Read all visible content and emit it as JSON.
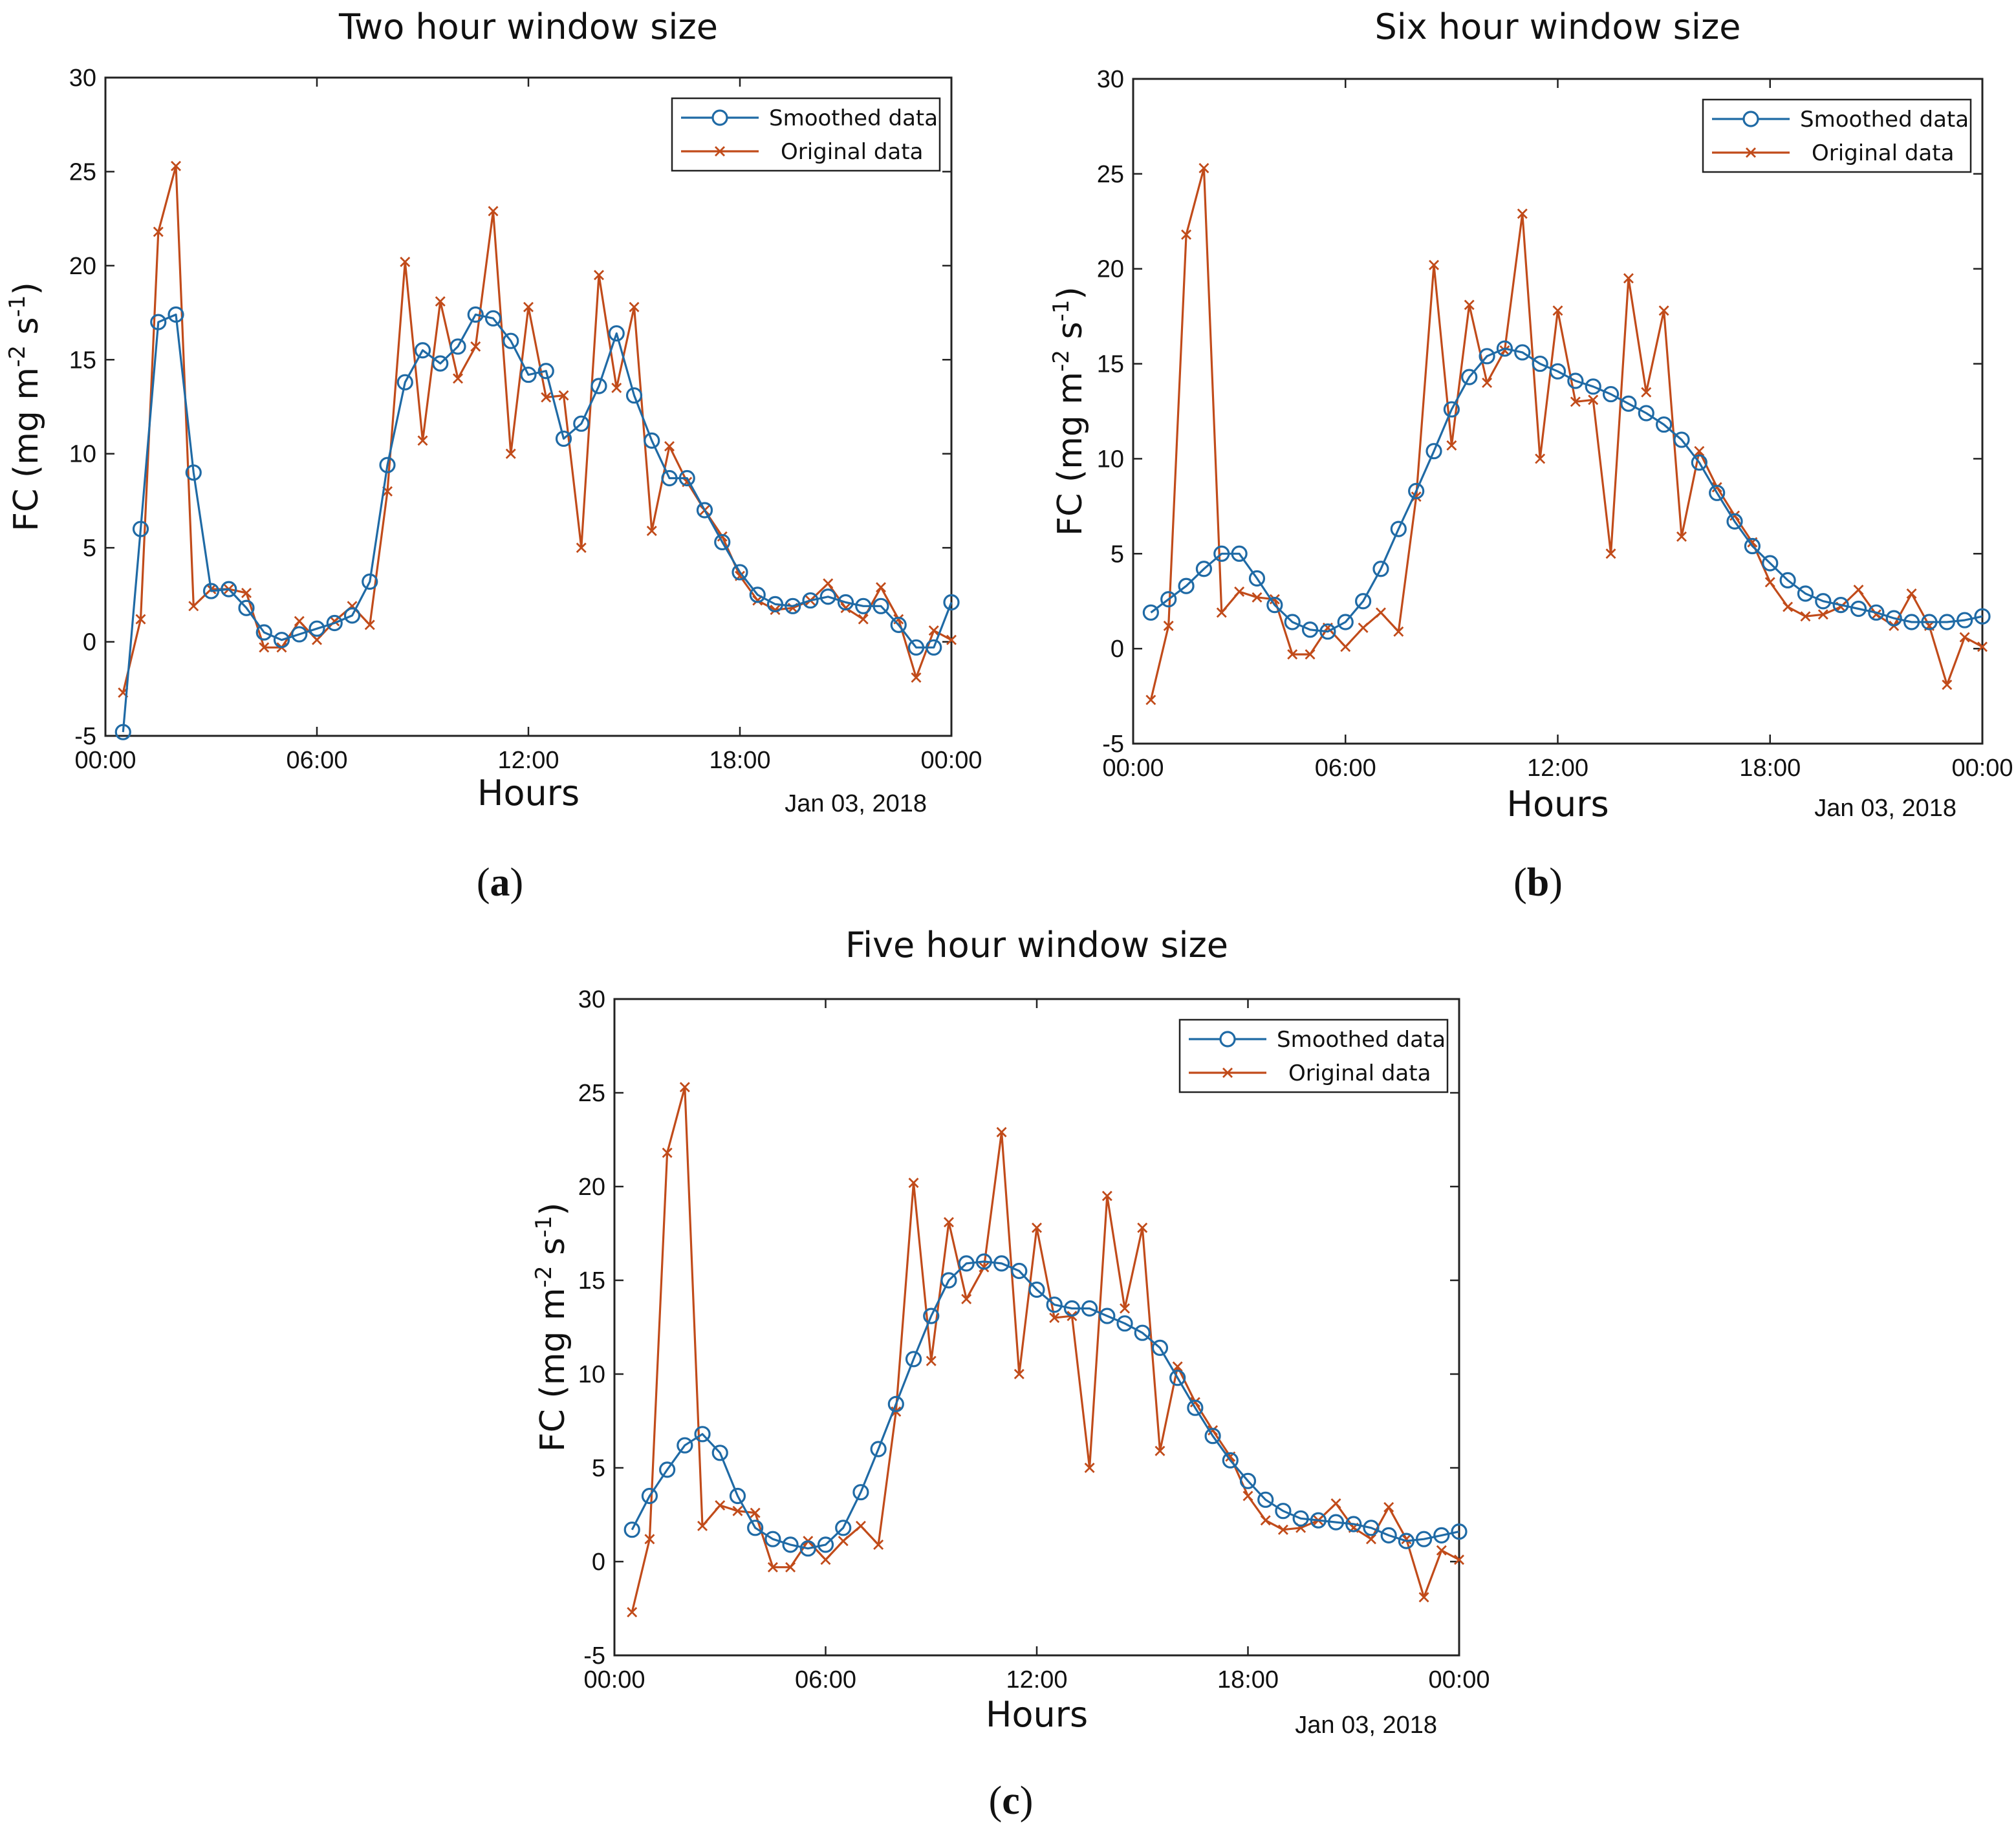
{
  "chart_data": [
    {
      "panel": "(a)",
      "panel_letter": "a",
      "type": "line",
      "title": "Two hour window size",
      "xlabel": "Hours",
      "ylabel": "FC (mg m⁻² s⁻¹)",
      "ylabel_base": "FC (mg m",
      "ylabel_exp1": "-2",
      "ylabel_mid": " s",
      "ylabel_exp2": "-1",
      "ylabel_end": ")",
      "date_label": "Jan 03, 2018",
      "xlim": [
        0,
        24
      ],
      "ylim": [
        -5,
        30
      ],
      "x_ticks": [
        0,
        6,
        12,
        18,
        24
      ],
      "x_tick_labels": [
        "00:00",
        "06:00",
        "12:00",
        "18:00",
        "00:00"
      ],
      "y_ticks": [
        -5,
        0,
        5,
        10,
        15,
        20,
        25,
        30
      ],
      "y_tick_labels": [
        "-5",
        "0",
        "5",
        "10",
        "15",
        "20",
        "25",
        "30"
      ],
      "legend_position": "top-right",
      "x": [
        0.5,
        1,
        1.5,
        2,
        2.5,
        3,
        3.5,
        4,
        4.5,
        5,
        5.5,
        6,
        6.5,
        7,
        7.5,
        8,
        8.5,
        9,
        9.5,
        10,
        10.5,
        11,
        11.5,
        12,
        12.5,
        13,
        13.5,
        14,
        14.5,
        15,
        15.5,
        16,
        16.5,
        17,
        17.5,
        18,
        18.5,
        19,
        19.5,
        20,
        20.5,
        21,
        21.5,
        22,
        22.5,
        23,
        23.5,
        24
      ],
      "series": [
        {
          "name": "Smoothed data",
          "color": "#1f6aa5",
          "marker": "circle",
          "values": [
            -4.8,
            6.0,
            17.0,
            17.4,
            9.0,
            2.7,
            2.8,
            1.8,
            0.5,
            0.1,
            0.4,
            0.7,
            1.0,
            1.4,
            3.2,
            9.4,
            13.8,
            15.5,
            14.8,
            15.7,
            17.4,
            17.2,
            16.0,
            14.2,
            14.4,
            10.8,
            11.6,
            13.6,
            16.4,
            13.1,
            10.7,
            8.7,
            8.7,
            7.0,
            5.3,
            3.7,
            2.5,
            2.0,
            1.9,
            2.2,
            2.4,
            2.1,
            1.9,
            1.9,
            0.9,
            -0.3,
            -0.3,
            2.1
          ]
        },
        {
          "name": "Original data",
          "color": "#c14b1a",
          "marker": "x",
          "values": [
            -2.7,
            1.2,
            21.8,
            25.3,
            1.9,
            2.8,
            2.8,
            2.6,
            -0.3,
            -0.3,
            1.1,
            0.1,
            1.1,
            1.9,
            0.9,
            8.0,
            20.2,
            10.7,
            18.1,
            14.0,
            15.7,
            22.9,
            10.0,
            17.8,
            13.0,
            13.1,
            5.0,
            19.5,
            13.5,
            17.8,
            5.9,
            10.4,
            8.5,
            7.0,
            5.6,
            3.5,
            2.2,
            1.7,
            1.8,
            2.2,
            3.1,
            1.8,
            1.2,
            2.9,
            1.2,
            -1.9,
            0.6,
            0.1
          ]
        }
      ]
    },
    {
      "panel": "(b)",
      "panel_letter": "b",
      "type": "line",
      "title": "Six hour window size",
      "xlabel": "Hours",
      "ylabel": "FC (mg m⁻² s⁻¹)",
      "ylabel_base": "FC (mg m",
      "ylabel_exp1": "-2",
      "ylabel_mid": " s",
      "ylabel_exp2": "-1",
      "ylabel_end": ")",
      "date_label": "Jan 03, 2018",
      "xlim": [
        0,
        24
      ],
      "ylim": [
        -5,
        30
      ],
      "x_ticks": [
        0,
        6,
        12,
        18,
        24
      ],
      "x_tick_labels": [
        "00:00",
        "06:00",
        "12:00",
        "18:00",
        "00:00"
      ],
      "y_ticks": [
        -5,
        0,
        5,
        10,
        15,
        20,
        25,
        30
      ],
      "y_tick_labels": [
        "-5",
        "0",
        "5",
        "10",
        "15",
        "20",
        "25",
        "30"
      ],
      "legend_position": "top-right",
      "x": [
        0.5,
        1,
        1.5,
        2,
        2.5,
        3,
        3.5,
        4,
        4.5,
        5,
        5.5,
        6,
        6.5,
        7,
        7.5,
        8,
        8.5,
        9,
        9.5,
        10,
        10.5,
        11,
        11.5,
        12,
        12.5,
        13,
        13.5,
        14,
        14.5,
        15,
        15.5,
        16,
        16.5,
        17,
        17.5,
        18,
        18.5,
        19,
        19.5,
        20,
        20.5,
        21,
        21.5,
        22,
        22.5,
        23,
        23.5,
        24
      ],
      "series": [
        {
          "name": "Smoothed data",
          "color": "#1f6aa5",
          "marker": "circle",
          "values": [
            1.9,
            2.6,
            3.3,
            4.2,
            5.0,
            5.0,
            3.7,
            2.3,
            1.4,
            1.0,
            0.9,
            1.4,
            2.5,
            4.2,
            6.3,
            8.3,
            10.4,
            12.6,
            14.3,
            15.4,
            15.8,
            15.6,
            15.0,
            14.6,
            14.1,
            13.8,
            13.4,
            12.9,
            12.4,
            11.8,
            11.0,
            9.8,
            8.2,
            6.7,
            5.4,
            4.5,
            3.6,
            2.9,
            2.5,
            2.3,
            2.1,
            1.9,
            1.6,
            1.4,
            1.4,
            1.4,
            1.5,
            1.7
          ]
        },
        {
          "name": "Original data",
          "color": "#c14b1a",
          "marker": "x",
          "values": [
            -2.7,
            1.2,
            21.8,
            25.3,
            1.9,
            3.0,
            2.7,
            2.6,
            -0.3,
            -0.3,
            1.1,
            0.1,
            1.1,
            1.9,
            0.9,
            8.0,
            20.2,
            10.7,
            18.1,
            14.0,
            15.7,
            22.9,
            10.0,
            17.8,
            13.0,
            13.1,
            5.0,
            19.5,
            13.5,
            17.8,
            5.9,
            10.4,
            8.5,
            7.0,
            5.6,
            3.5,
            2.2,
            1.7,
            1.8,
            2.2,
            3.1,
            1.8,
            1.2,
            2.9,
            1.2,
            -1.9,
            0.6,
            0.1
          ]
        }
      ]
    },
    {
      "panel": "(c)",
      "panel_letter": "c",
      "type": "line",
      "title": "Five hour window size",
      "xlabel": "Hours",
      "ylabel": "FC (mg m⁻² s⁻¹)",
      "ylabel_base": "FC (mg m",
      "ylabel_exp1": "-2",
      "ylabel_mid": " s",
      "ylabel_exp2": "-1",
      "ylabel_end": ")",
      "date_label": "Jan 03, 2018",
      "xlim": [
        0,
        24
      ],
      "ylim": [
        -5,
        30
      ],
      "x_ticks": [
        0,
        6,
        12,
        18,
        24
      ],
      "x_tick_labels": [
        "00:00",
        "06:00",
        "12:00",
        "18:00",
        "00:00"
      ],
      "y_ticks": [
        -5,
        0,
        5,
        10,
        15,
        20,
        25,
        30
      ],
      "y_tick_labels": [
        "-5",
        "0",
        "5",
        "10",
        "15",
        "20",
        "25",
        "30"
      ],
      "legend_position": "top-right",
      "x": [
        0.5,
        1,
        1.5,
        2,
        2.5,
        3,
        3.5,
        4,
        4.5,
        5,
        5.5,
        6,
        6.5,
        7,
        7.5,
        8,
        8.5,
        9,
        9.5,
        10,
        10.5,
        11,
        11.5,
        12,
        12.5,
        13,
        13.5,
        14,
        14.5,
        15,
        15.5,
        16,
        16.5,
        17,
        17.5,
        18,
        18.5,
        19,
        19.5,
        20,
        20.5,
        21,
        21.5,
        22,
        22.5,
        23,
        23.5,
        24
      ],
      "series": [
        {
          "name": "Smoothed data",
          "color": "#1f6aa5",
          "marker": "circle",
          "values": [
            1.7,
            3.5,
            4.9,
            6.2,
            6.8,
            5.8,
            3.5,
            1.8,
            1.2,
            0.9,
            0.7,
            0.9,
            1.8,
            3.7,
            6.0,
            8.4,
            10.8,
            13.1,
            15.0,
            15.9,
            16.0,
            15.9,
            15.5,
            14.5,
            13.7,
            13.5,
            13.5,
            13.1,
            12.7,
            12.2,
            11.4,
            9.8,
            8.2,
            6.7,
            5.4,
            4.3,
            3.3,
            2.7,
            2.3,
            2.2,
            2.1,
            2.0,
            1.8,
            1.4,
            1.1,
            1.2,
            1.4,
            1.6
          ]
        },
        {
          "name": "Original data",
          "color": "#c14b1a",
          "marker": "x",
          "values": [
            -2.7,
            1.2,
            21.8,
            25.3,
            1.9,
            3.0,
            2.7,
            2.6,
            -0.3,
            -0.3,
            1.1,
            0.1,
            1.1,
            1.9,
            0.9,
            8.0,
            20.2,
            10.7,
            18.1,
            14.0,
            15.7,
            22.9,
            10.0,
            17.8,
            13.0,
            13.1,
            5.0,
            19.5,
            13.5,
            17.8,
            5.9,
            10.4,
            8.5,
            7.0,
            5.6,
            3.5,
            2.2,
            1.7,
            1.8,
            2.2,
            3.1,
            1.8,
            1.2,
            2.9,
            1.2,
            -1.9,
            0.6,
            0.1
          ]
        }
      ]
    }
  ]
}
